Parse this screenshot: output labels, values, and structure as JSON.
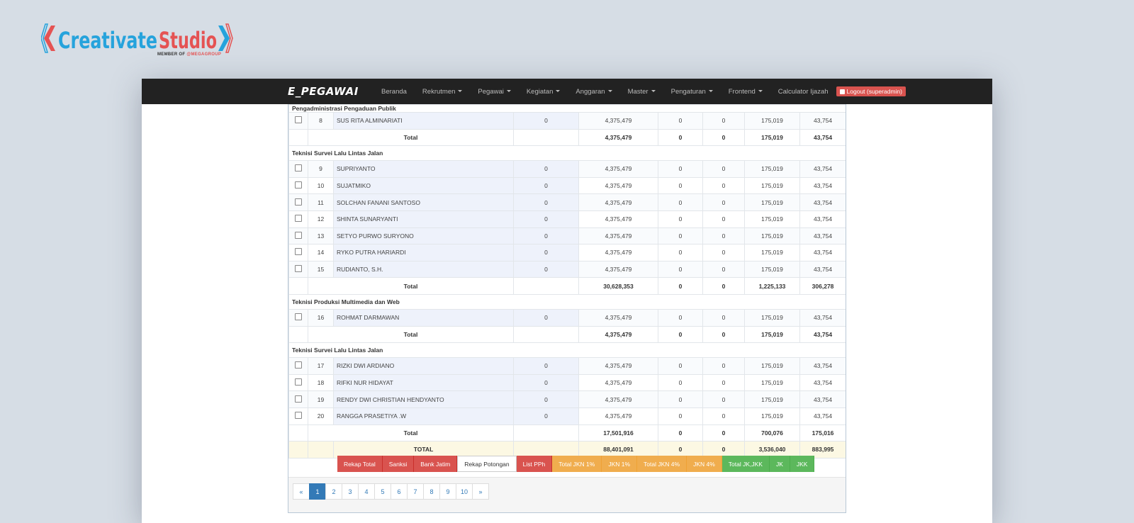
{
  "brand": {
    "name": "CreativateStudio",
    "part1": "Creativate",
    "part2": "Studio",
    "member": "MEMBER OF",
    "group": "@MEGAGROUP"
  },
  "navbar": {
    "brand": "E_PEGAWAI",
    "items": [
      "Beranda",
      "Rekrutmen",
      "Pegawai",
      "Kegiatan",
      "Anggaran",
      "Master",
      "Pengaturan",
      "Frontend",
      "Calculator Ijazah"
    ],
    "dropdown_flags": [
      false,
      true,
      true,
      true,
      true,
      true,
      true,
      true,
      false
    ],
    "logout": "Logout (superadmin)"
  },
  "table": {
    "groups": [
      {
        "title": "Pengadministrasi Pengaduan Publik",
        "rows": [
          {
            "no": "8",
            "name": "SUS RITA ALMINARIATI",
            "c1": "0",
            "c2": "4,375,479",
            "c3": "0",
            "c4": "0",
            "c5": "175,019",
            "c6": "43,754"
          }
        ],
        "total": {
          "label": "Total",
          "c2": "4,375,479",
          "c3": "0",
          "c4": "0",
          "c5": "175,019",
          "c6": "43,754"
        }
      },
      {
        "title": "Teknisi Survei Lalu Lintas Jalan",
        "rows": [
          {
            "no": "9",
            "name": "SUPRIYANTO",
            "c1": "0",
            "c2": "4,375,479",
            "c3": "0",
            "c4": "0",
            "c5": "175,019",
            "c6": "43,754"
          },
          {
            "no": "10",
            "name": "SUJATMIKO",
            "c1": "0",
            "c2": "4,375,479",
            "c3": "0",
            "c4": "0",
            "c5": "175,019",
            "c6": "43,754"
          },
          {
            "no": "11",
            "name": "SOLCHAN FANANI SANTOSO",
            "c1": "0",
            "c2": "4,375,479",
            "c3": "0",
            "c4": "0",
            "c5": "175,019",
            "c6": "43,754"
          },
          {
            "no": "12",
            "name": "SHINTA SUNARYANTI",
            "c1": "0",
            "c2": "4,375,479",
            "c3": "0",
            "c4": "0",
            "c5": "175,019",
            "c6": "43,754"
          },
          {
            "no": "13",
            "name": "SETYO PURWO SURYONO",
            "c1": "0",
            "c2": "4,375,479",
            "c3": "0",
            "c4": "0",
            "c5": "175,019",
            "c6": "43,754"
          },
          {
            "no": "14",
            "name": "RYKO PUTRA HARIARDI",
            "c1": "0",
            "c2": "4,375,479",
            "c3": "0",
            "c4": "0",
            "c5": "175,019",
            "c6": "43,754"
          },
          {
            "no": "15",
            "name": "RUDIANTO, S.H.",
            "c1": "0",
            "c2": "4,375,479",
            "c3": "0",
            "c4": "0",
            "c5": "175,019",
            "c6": "43,754"
          }
        ],
        "total": {
          "label": "Total",
          "c2": "30,628,353",
          "c3": "0",
          "c4": "0",
          "c5": "1,225,133",
          "c6": "306,278"
        }
      },
      {
        "title": "Teknisi Produksi Multimedia dan Web",
        "rows": [
          {
            "no": "16",
            "name": "ROHMAT DARMAWAN",
            "c1": "0",
            "c2": "4,375,479",
            "c3": "0",
            "c4": "0",
            "c5": "175,019",
            "c6": "43,754"
          }
        ],
        "total": {
          "label": "Total",
          "c2": "4,375,479",
          "c3": "0",
          "c4": "0",
          "c5": "175,019",
          "c6": "43,754"
        }
      },
      {
        "title": "Teknisi Survei Lalu Lintas Jalan",
        "rows": [
          {
            "no": "17",
            "name": "RIZKI DWI ARDIANO",
            "c1": "0",
            "c2": "4,375,479",
            "c3": "0",
            "c4": "0",
            "c5": "175,019",
            "c6": "43,754"
          },
          {
            "no": "18",
            "name": "RIFKI NUR HIDAYAT",
            "c1": "0",
            "c2": "4,375,479",
            "c3": "0",
            "c4": "0",
            "c5": "175,019",
            "c6": "43,754"
          },
          {
            "no": "19",
            "name": "RENDY DWI CHRISTIAN HENDYANTO",
            "c1": "0",
            "c2": "4,375,479",
            "c3": "0",
            "c4": "0",
            "c5": "175,019",
            "c6": "43,754"
          },
          {
            "no": "20",
            "name": "RANGGA PRASETIYA .W",
            "c1": "0",
            "c2": "4,375,479",
            "c3": "0",
            "c4": "0",
            "c5": "175,019",
            "c6": "43,754"
          }
        ],
        "total": {
          "label": "Total",
          "c2": "17,501,916",
          "c3": "0",
          "c4": "0",
          "c5": "700,076",
          "c6": "175,016"
        }
      }
    ],
    "grand_total": {
      "label": "TOTAL",
      "c2": "88,401,091",
      "c3": "0",
      "c4": "0",
      "c5": "3,536,040",
      "c6": "883,995"
    }
  },
  "buttons": [
    {
      "label": "Rekap Total",
      "style": "red"
    },
    {
      "label": "Sanksi",
      "style": "red"
    },
    {
      "label": "Bank Jatim",
      "style": "red"
    },
    {
      "label": "Rekap Potongan",
      "style": "white"
    },
    {
      "label": "List PPh",
      "style": "red"
    },
    {
      "label": "Total JKN 1%",
      "style": "orange"
    },
    {
      "label": "JKN 1%",
      "style": "orange"
    },
    {
      "label": "Total JKN 4%",
      "style": "orange"
    },
    {
      "label": "JKN 4%",
      "style": "orange"
    },
    {
      "label": "Total JK,JKK",
      "style": "green"
    },
    {
      "label": "JK",
      "style": "green"
    },
    {
      "label": "JKK",
      "style": "green"
    }
  ],
  "pagination": {
    "prev": "«",
    "pages": [
      "1",
      "2",
      "3",
      "4",
      "5",
      "6",
      "7",
      "8",
      "9",
      "10"
    ],
    "active": "1",
    "next": "»"
  },
  "colors": {
    "primary": "#337ab7",
    "danger": "#d9534f",
    "warning": "#f0ad4e",
    "success": "#5cb85c",
    "navbar": "#222222"
  }
}
